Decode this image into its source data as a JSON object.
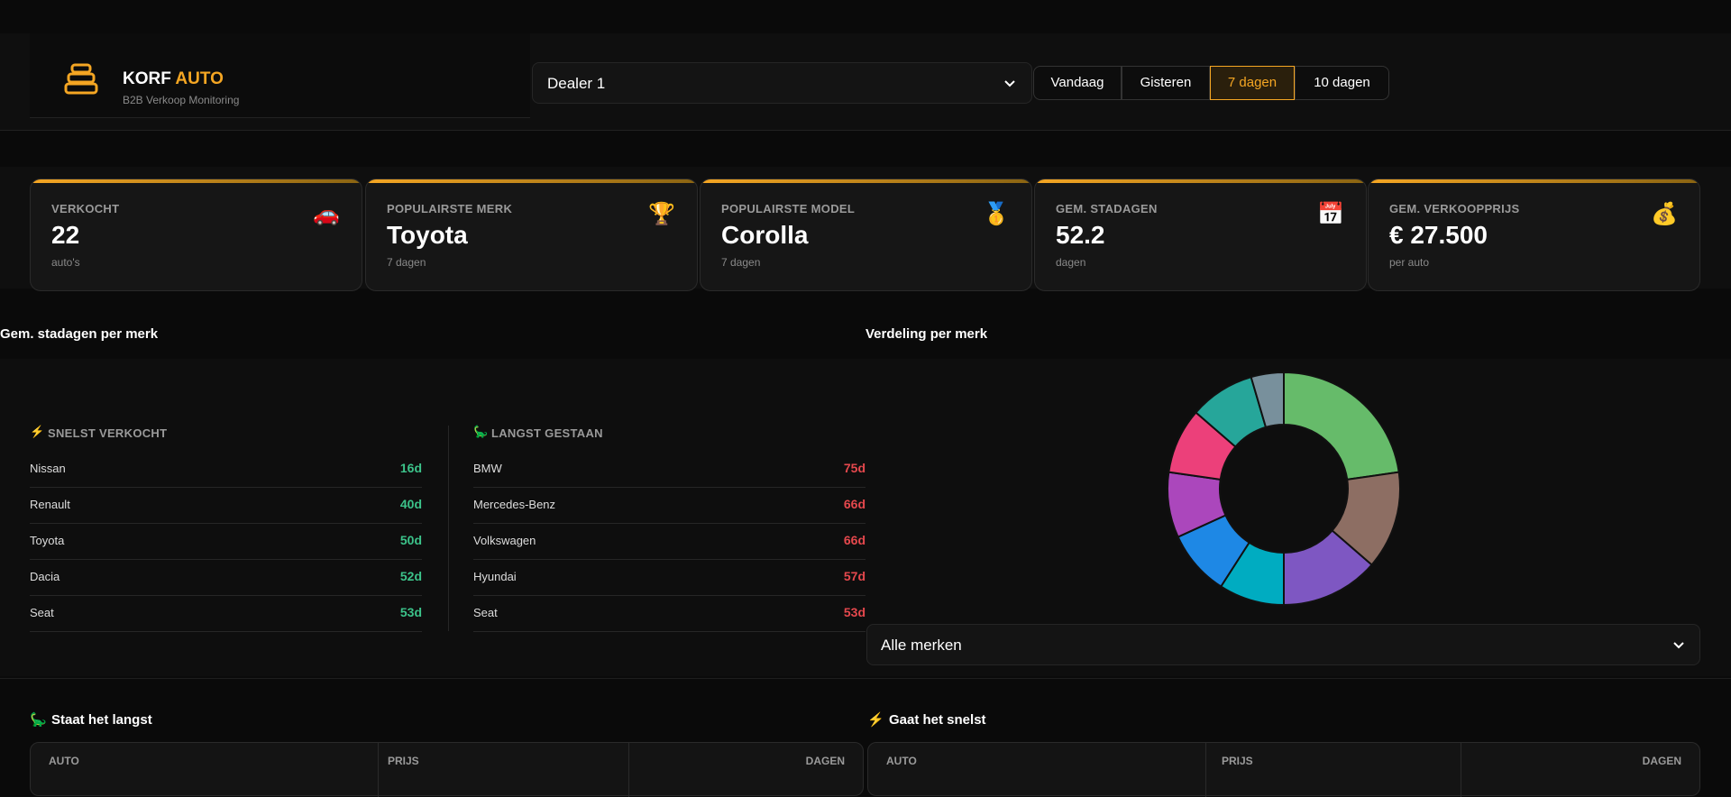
{
  "header": {
    "brand_primary": "KORF",
    "brand_accent": "AUTO",
    "subtitle": "B2B Verkoop Monitoring",
    "dealer_select": "Dealer 1",
    "periods": [
      "Vandaag",
      "Gisteren",
      "7 dagen",
      "10 dagen"
    ],
    "active_period": 2
  },
  "stats": [
    {
      "label": "VERKOCHT",
      "value": "22",
      "sub": "auto's",
      "icon": "🚗"
    },
    {
      "label": "POPULAIRSTE MERK",
      "value": "Toyota",
      "sub": "7 dagen",
      "icon": "🏆"
    },
    {
      "label": "POPULAIRSTE MODEL",
      "value": "Corolla",
      "sub": "7 dagen",
      "icon": "🥇"
    },
    {
      "label": "GEM. STADAGEN",
      "value": "52.2",
      "sub": "dagen",
      "icon": "📅"
    },
    {
      "label": "GEM. VERKOOPPRIJS",
      "value": "€ 27.500",
      "sub": "per auto",
      "icon": "💰"
    }
  ],
  "stadagen": {
    "title": "Gem. stadagen per merk",
    "lists": [
      {
        "icon": "⚡",
        "title": "SNELST VERKOCHT",
        "rows": [
          {
            "brand": "Nissan",
            "days": "16d"
          },
          {
            "brand": "Renault",
            "days": "40d"
          },
          {
            "brand": "Toyota",
            "days": "50d"
          },
          {
            "brand": "Dacia",
            "days": "52d"
          },
          {
            "brand": "Seat",
            "days": "53d"
          }
        ]
      },
      {
        "icon": "🦕",
        "title": "LANGST GESTAAN",
        "rows": [
          {
            "brand": "BMW",
            "days": "75d"
          },
          {
            "brand": "Mercedes-Benz",
            "days": "66d"
          },
          {
            "brand": "Volkswagen",
            "days": "66d"
          },
          {
            "brand": "Hyundai",
            "days": "57d"
          },
          {
            "brand": "Seat",
            "days": "53d"
          }
        ]
      }
    ]
  },
  "distribution": {
    "title": "Verdeling per merk",
    "select": "Alle merken"
  },
  "chart_data": {
    "type": "pie",
    "donut": true,
    "values": [
      5,
      3,
      3,
      2,
      2,
      2,
      2,
      2,
      1
    ],
    "colors": [
      "#66bb6a",
      "#8d6e63",
      "#7e57c2",
      "#00acc1",
      "#1e88e5",
      "#ab47bc",
      "#ec407a",
      "#26a69a",
      "#78909c"
    ]
  },
  "tables": [
    {
      "icon": "🦕",
      "title": "Staat het langst",
      "columns": [
        "AUTO",
        "PRIJS",
        "DAGEN"
      ]
    },
    {
      "icon": "⚡",
      "title": "Gaat het snelst",
      "columns": [
        "AUTO",
        "PRIJS",
        "DAGEN"
      ]
    }
  ]
}
